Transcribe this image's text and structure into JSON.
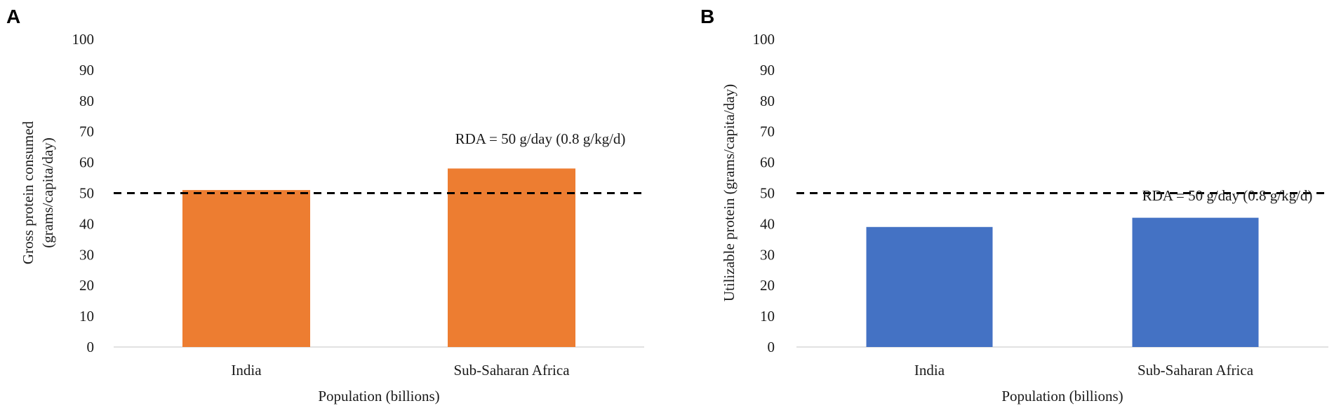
{
  "chart_data": [
    {
      "panel_label": "A",
      "type": "bar",
      "categories": [
        "India",
        "Sub-Saharan Africa"
      ],
      "values": [
        51,
        58
      ],
      "title": "",
      "xlabel": "Population (billions)",
      "ylabel_line1": "Gross protein consumed",
      "ylabel_line2": "(grams/capita/day)",
      "ylim": [
        0,
        100
      ],
      "yticks": [
        0,
        10,
        20,
        30,
        40,
        50,
        60,
        70,
        80,
        90,
        100
      ],
      "ytick_labels": [
        "0",
        "10",
        "20",
        "30",
        "40",
        "50",
        "60",
        "70",
        "80",
        "90",
        "100"
      ],
      "reference_line": {
        "value": 50,
        "label": "RDA = 50 g/day (0.8 g/kg/d)"
      },
      "bar_color": "#ED7D31",
      "grid": false
    },
    {
      "panel_label": "B",
      "type": "bar",
      "categories": [
        "India",
        "Sub-Saharan Africa"
      ],
      "values": [
        39,
        42
      ],
      "title": "",
      "xlabel": "Population (billions)",
      "ylabel_line1": "Utilizable protein (grams/capita/day)",
      "ylabel_line2": "",
      "ylim": [
        0,
        100
      ],
      "yticks": [
        0,
        10,
        20,
        30,
        40,
        50,
        60,
        70,
        80,
        90,
        100
      ],
      "ytick_labels": [
        "0",
        "10",
        "20",
        "30",
        "40",
        "50",
        "60",
        "70",
        "80",
        "90",
        "100"
      ],
      "reference_line": {
        "value": 50,
        "label": "RDA = 50 g/day (0.8 g/kg/d)"
      },
      "bar_color": "#4472C4",
      "grid": false
    }
  ]
}
